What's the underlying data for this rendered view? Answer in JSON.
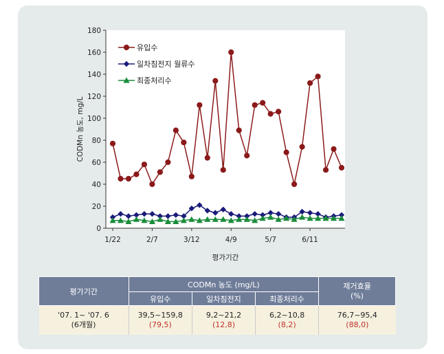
{
  "chart_data": {
    "type": "line",
    "title": "",
    "ylabel": "CODMn 농도, mg/L",
    "xlabel": "평가기간",
    "ylim": [
      0,
      180
    ],
    "yticks": [
      0,
      20,
      40,
      60,
      80,
      100,
      120,
      140,
      160,
      180
    ],
    "x_tick_labels": [
      {
        "label": "1/22",
        "index": 0
      },
      {
        "label": "2/7",
        "index": 5
      },
      {
        "label": "3/12",
        "index": 10
      },
      {
        "label": "4/9",
        "index": 15
      },
      {
        "label": "5/7",
        "index": 20
      },
      {
        "label": "6/11",
        "index": 25
      }
    ],
    "series": [
      {
        "name": "유입수",
        "color": "#8b1a1a",
        "marker": "circle",
        "values": [
          77,
          45,
          45,
          49,
          58,
          40,
          51,
          60,
          89,
          78,
          47,
          112,
          64,
          134,
          53,
          160,
          89,
          66,
          112,
          114,
          104,
          106,
          69,
          40,
          74,
          132,
          138,
          53,
          72,
          55
        ]
      },
      {
        "name": "일차침전지 월류수",
        "color": "#1a1a7a",
        "marker": "diamond",
        "values": [
          10,
          13,
          11,
          12,
          13,
          13,
          11,
          11,
          12,
          11,
          18,
          21,
          16,
          14,
          17,
          13,
          11,
          11,
          13,
          12,
          14,
          13,
          10,
          10,
          15,
          14,
          13,
          10,
          11,
          12
        ]
      },
      {
        "name": "최종처리수",
        "color": "#1a8c3a",
        "marker": "triangle",
        "values": [
          7,
          7,
          6,
          8,
          7,
          6,
          8,
          6,
          6,
          7,
          8,
          7,
          8,
          8,
          8,
          7,
          8,
          8,
          7,
          9,
          10,
          8,
          9,
          8,
          10,
          9,
          9,
          9,
          9,
          9
        ]
      }
    ]
  },
  "table": {
    "header_period": "평가기간",
    "header_conc": "CODMn 농도 (mg/L)",
    "header_removal": "제거효율\n(%)",
    "sub_influent": "유입수",
    "sub_primary": "일차침전지",
    "sub_final": "최종처리수",
    "period_line1": "'07. 1~ '07. 6",
    "period_line2": "(6개월)",
    "influent_range": "39,5~159,8",
    "influent_avg": "(79,5)",
    "primary_range": "9,2~21,2",
    "primary_avg": "(12,8)",
    "final_range": "6,2~10,8",
    "final_avg": "(8,2)",
    "removal_range": "76,7~95,4",
    "removal_avg": "(88,0)"
  }
}
